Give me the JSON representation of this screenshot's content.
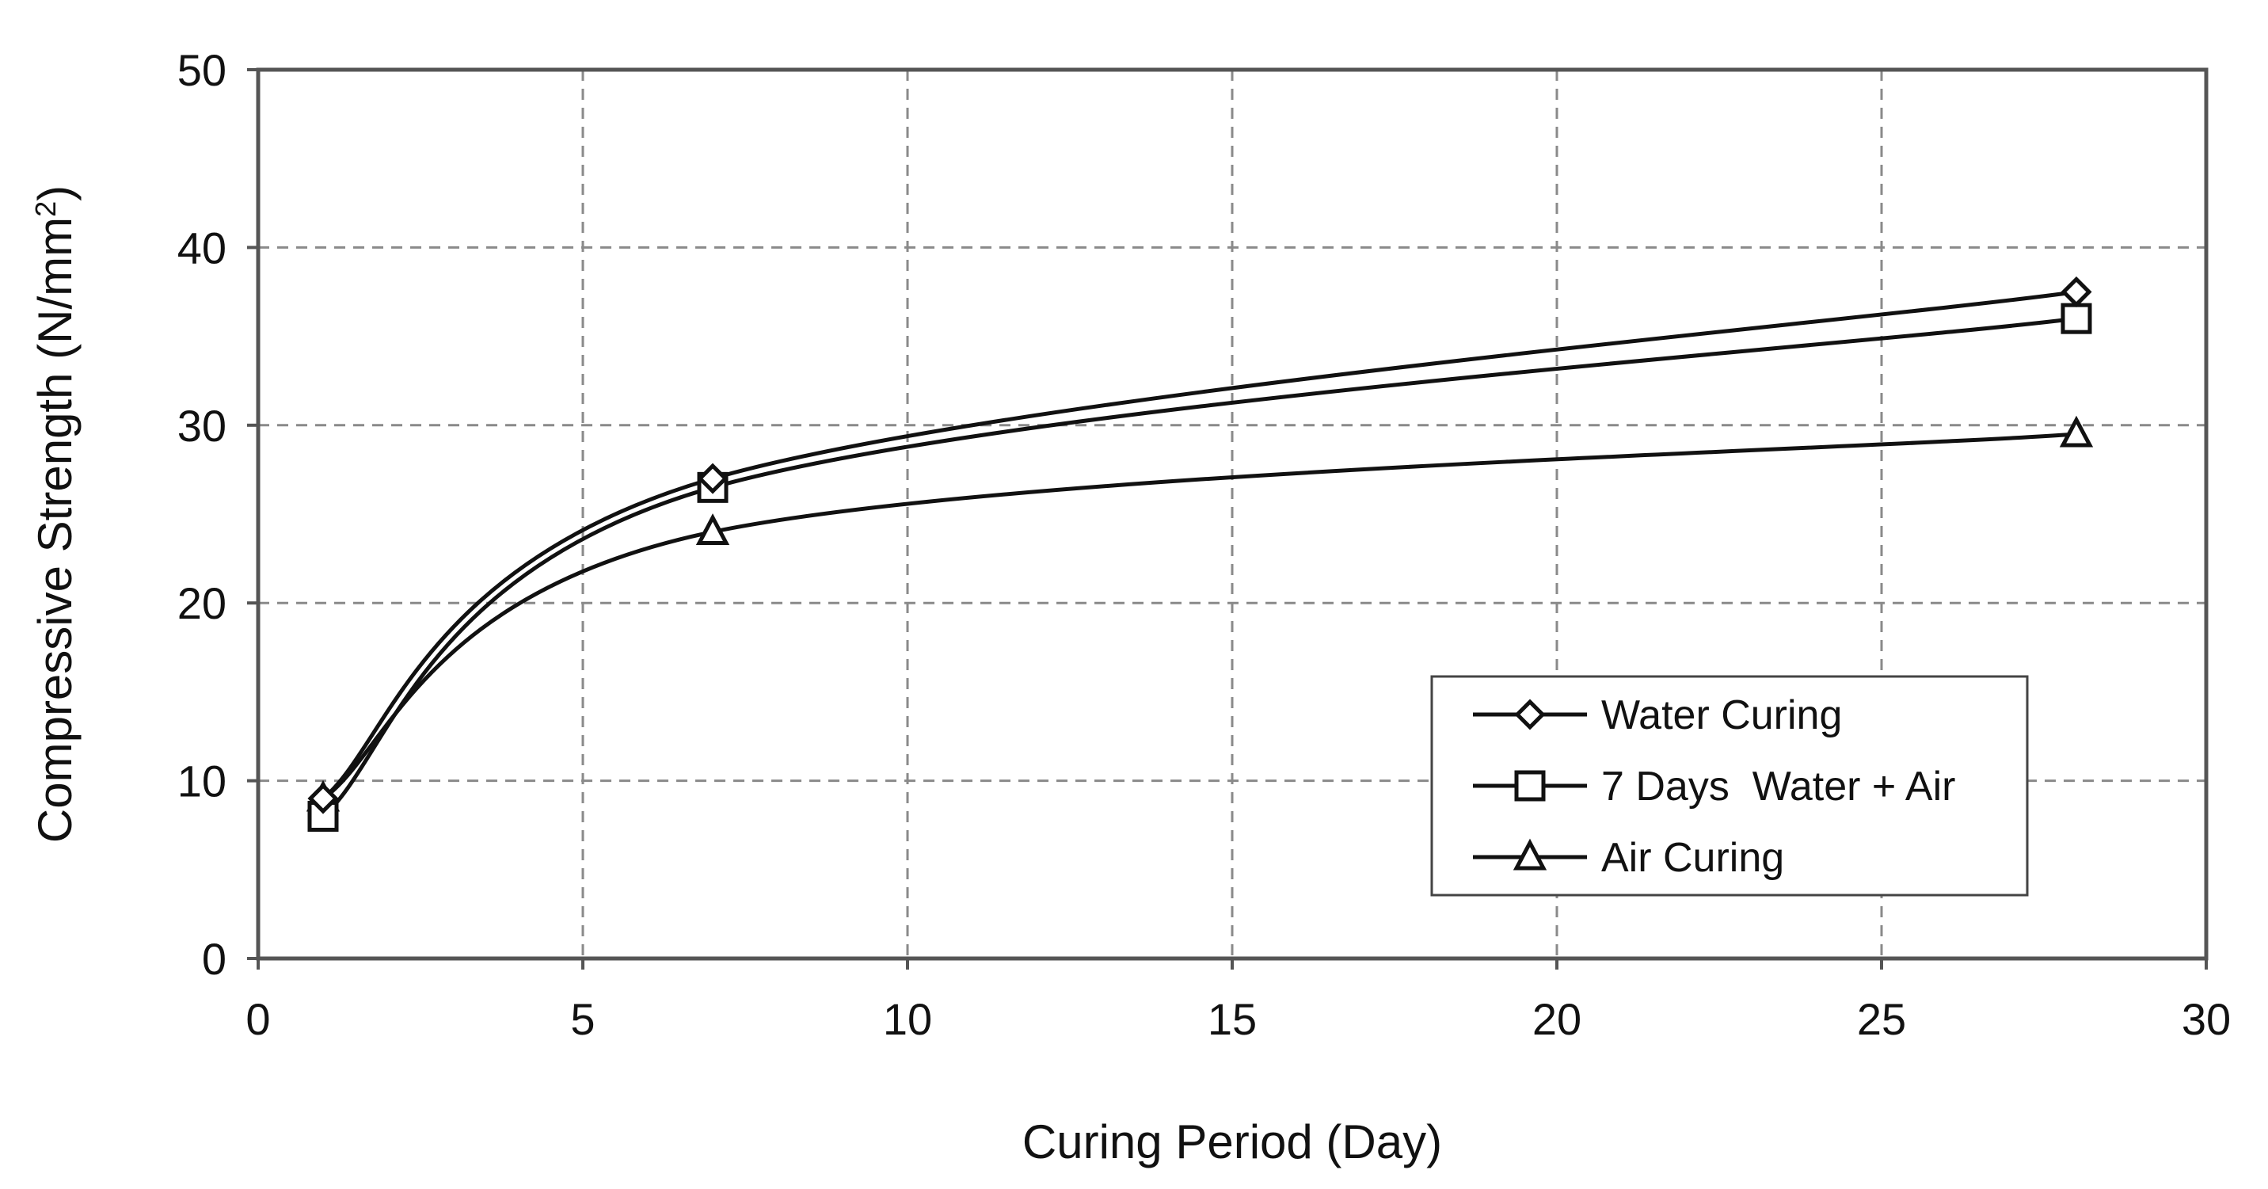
{
  "chart_data": {
    "type": "line",
    "title": "",
    "xlabel": "Curing Period (Day)",
    "ylabel": "Compressive Strength (N/mm",
    "ylabel_sup": "2",
    "ylabel_close": ")",
    "xlim": [
      0,
      30
    ],
    "ylim": [
      0,
      50
    ],
    "x_ticks": [
      0,
      5,
      10,
      15,
      20,
      25,
      30
    ],
    "y_ticks": [
      0,
      10,
      20,
      30,
      40,
      50
    ],
    "x_tick_labels": [
      "0",
      "5",
      "10",
      "15",
      "20",
      "25",
      "30"
    ],
    "y_tick_labels": [
      "0",
      "10",
      "20",
      "30",
      "40",
      "50"
    ],
    "grid": true,
    "legend_position": "lower-right",
    "line_color": "#111111",
    "grid_color": "#8a8a8a",
    "series": [
      {
        "name": "Water Curing",
        "marker": "diamond",
        "x": [
          1,
          7,
          28
        ],
        "values": [
          9,
          27,
          37.5
        ]
      },
      {
        "name": "7 Days  Water + Air",
        "marker": "square",
        "x": [
          1,
          7,
          28
        ],
        "values": [
          8,
          26.5,
          36
        ]
      },
      {
        "name": "Air Curing",
        "marker": "triangle",
        "x": [
          1,
          7,
          28
        ],
        "values": [
          9,
          24,
          29.5
        ]
      }
    ]
  }
}
